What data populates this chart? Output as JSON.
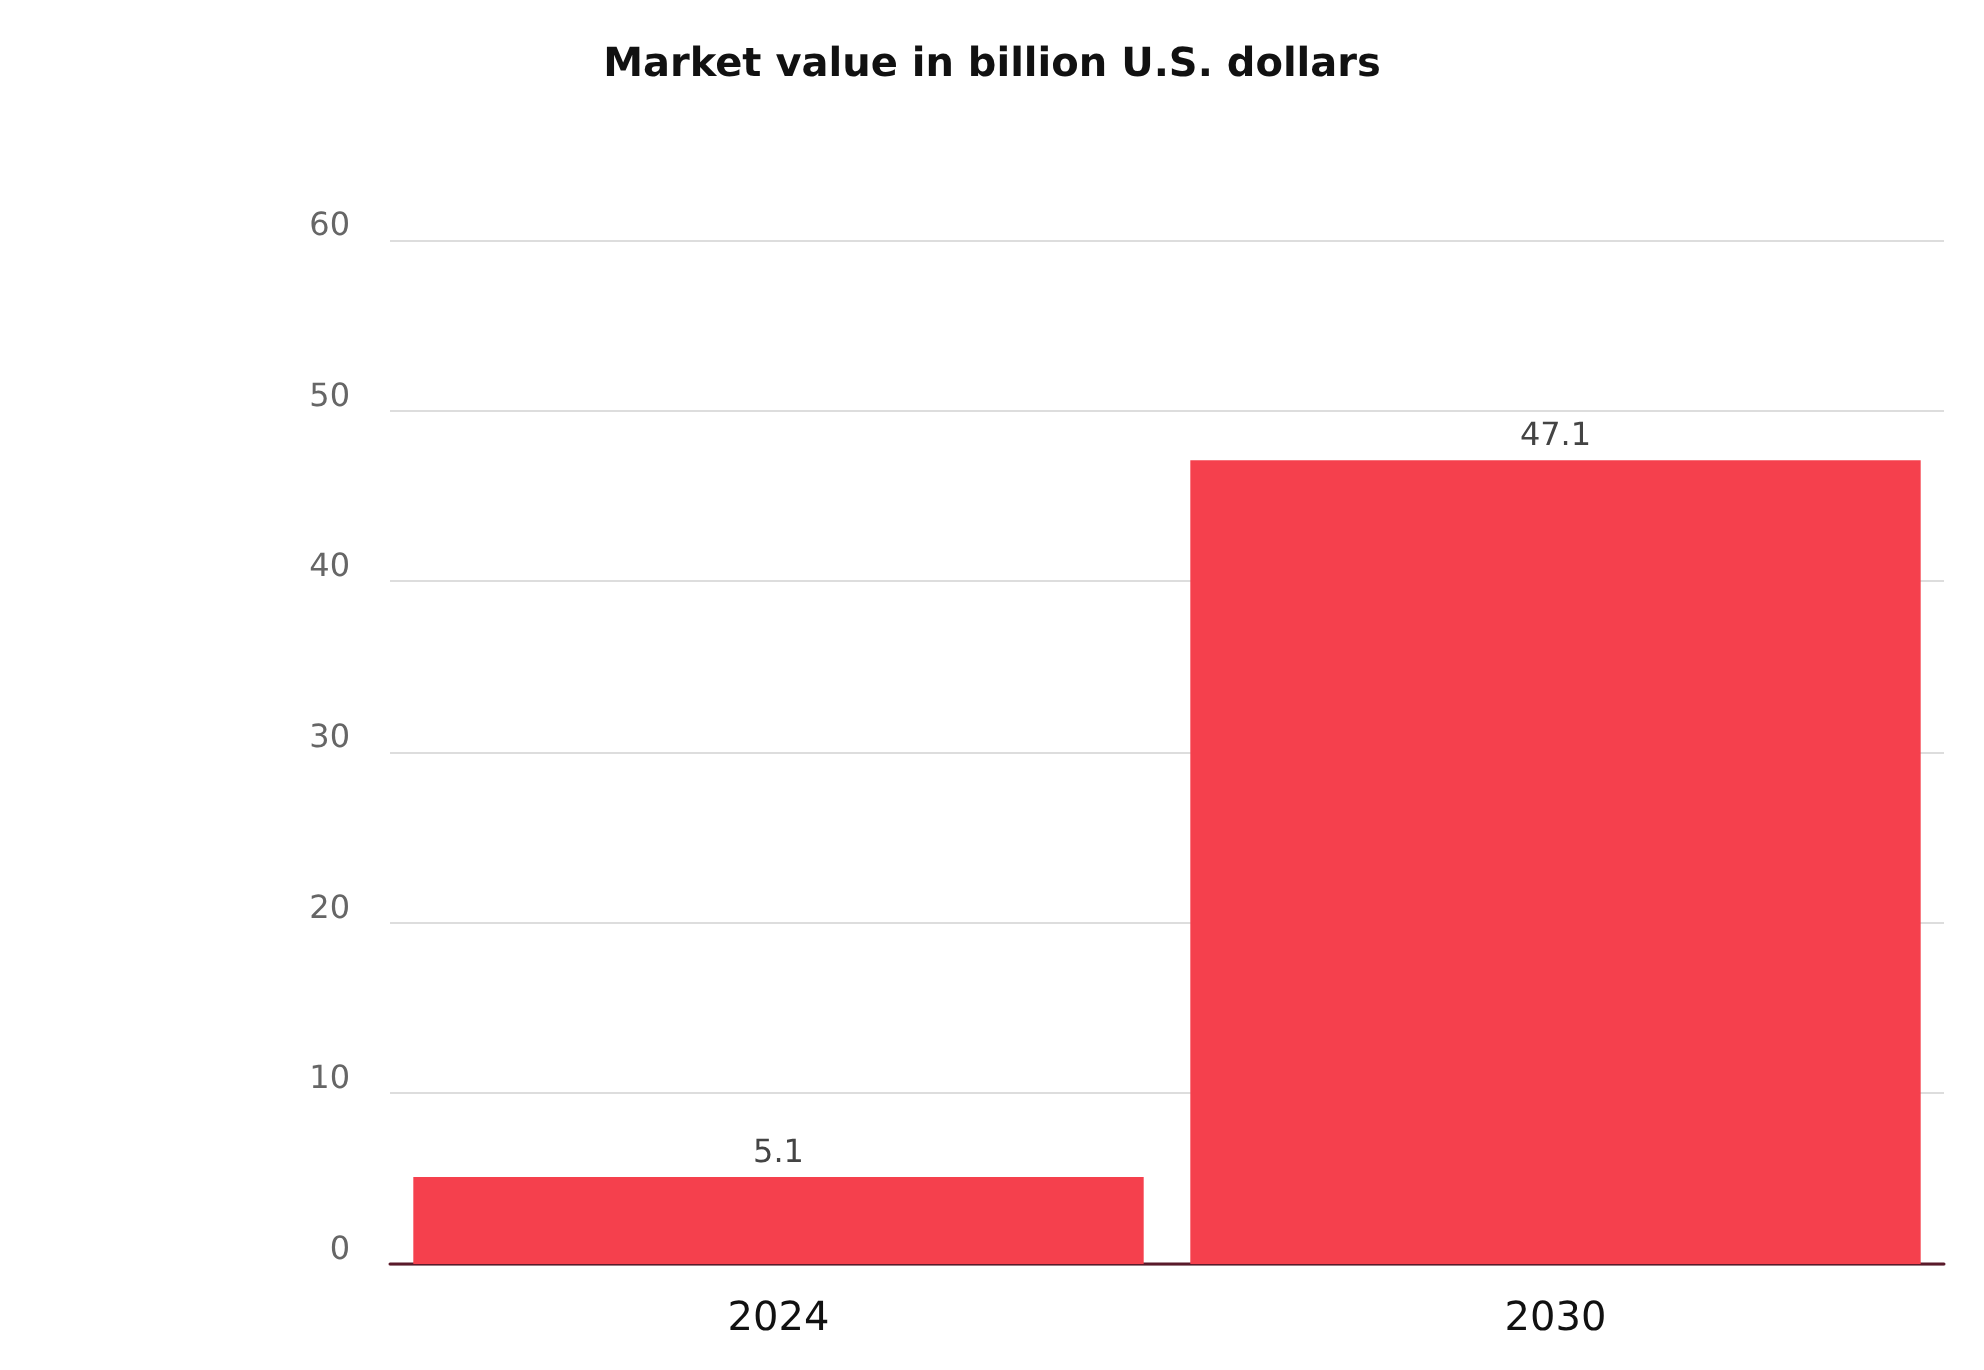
{
  "chart_data": {
    "type": "bar",
    "title": "Market value in billion U.S. dollars",
    "categories": [
      "2024",
      "2030"
    ],
    "values": [
      5.1,
      47.1
    ],
    "color": "#f5404d",
    "ylim": [
      0,
      60
    ],
    "yticks": [
      0,
      10,
      20,
      30,
      40,
      50,
      60
    ],
    "grid": "y",
    "data_labels": true
  }
}
